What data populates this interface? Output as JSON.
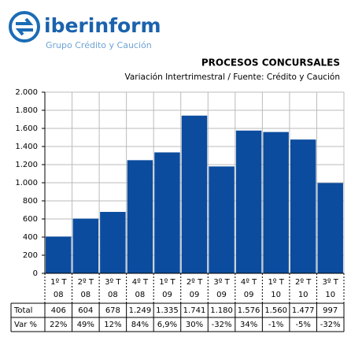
{
  "logo": {
    "name": "iberinform",
    "tagline": "Grupo Crédito y Caución"
  },
  "chart_data": {
    "type": "bar",
    "title": "PROCESOS CONCURSALES",
    "subtitle": "Variación Intertrimestral / Fuente: Crédito y Caución",
    "categories": [
      [
        "1º T",
        "08"
      ],
      [
        "2º T",
        "08"
      ],
      [
        "3º T",
        "08"
      ],
      [
        "4º T",
        "08"
      ],
      [
        "1º T",
        "09"
      ],
      [
        "2º T",
        "09"
      ],
      [
        "3º T",
        "09"
      ],
      [
        "4º T",
        "09"
      ],
      [
        "1º T",
        "10"
      ],
      [
        "2º T",
        "10"
      ],
      [
        "3º T",
        "10"
      ]
    ],
    "values": [
      406,
      604,
      678,
      1249,
      1335,
      1741,
      1180,
      1576,
      1560,
      1477,
      997
    ],
    "value_labels": [
      "406",
      "604",
      "678",
      "1.249",
      "1.335",
      "1.741",
      "1.180",
      "1.576",
      "1.560",
      "1.477",
      "997"
    ],
    "color": "#0b4c9e",
    "ylim": [
      0,
      2000
    ],
    "yticks": [
      0,
      200,
      400,
      600,
      800,
      {
        "value": 1000,
        "label": "1.000"
      },
      {
        "value": 1200,
        "label": "1.200"
      },
      {
        "value": 1400,
        "label": "1.400"
      },
      {
        "value": 1600,
        "label": "1.600"
      },
      {
        "value": 1800,
        "label": "1.800"
      },
      {
        "value": 2000,
        "label": "2.000"
      }
    ],
    "grid": true,
    "table": {
      "row_labels": [
        "Total",
        "Var %"
      ],
      "var_pct": [
        "22%",
        "49%",
        "12%",
        "84%",
        "6,9%",
        "30%",
        "-32%",
        "34%",
        "-1%",
        "-5%",
        "-32%"
      ]
    }
  }
}
